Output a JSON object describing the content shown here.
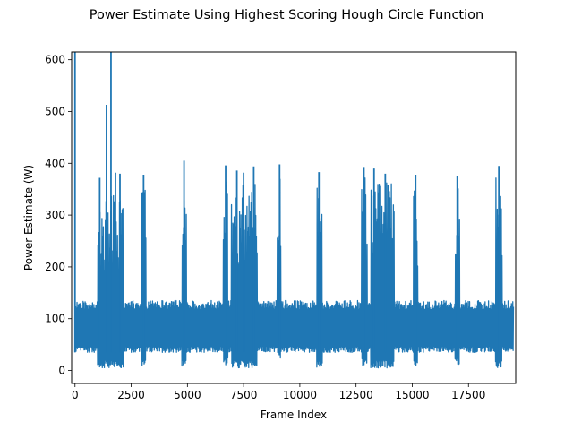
{
  "chart_data": {
    "type": "line",
    "title": "Power Estimate Using Highest Scoring Hough Circle Function",
    "xlabel": "Frame Index",
    "ylabel": "Power Estimate (W)",
    "xlim": [
      -150,
      19600
    ],
    "ylim": [
      -25,
      615
    ],
    "xticks": [
      0,
      2500,
      5000,
      7500,
      10000,
      12500,
      15000,
      17500
    ],
    "xtick_labels": [
      "0",
      "2500",
      "5000",
      "7500",
      "10000",
      "12500",
      "15000",
      "17500"
    ],
    "yticks": [
      0,
      100,
      200,
      300,
      400,
      500,
      600
    ],
    "ytick_labels": [
      "0",
      "100",
      "200",
      "300",
      "400",
      "500",
      "600"
    ],
    "grid": false,
    "legend": "none",
    "series": [
      {
        "color": "#1f77b4",
        "x_range": [
          0,
          19500
        ],
        "baseline_low": 35,
        "baseline_high": 135,
        "spikes": [
          {
            "x": 0,
            "y": 615
          },
          {
            "x": 1100,
            "y": 372
          },
          {
            "x": 1400,
            "y": 513
          },
          {
            "x": 1600,
            "y": 615
          },
          {
            "x": 1800,
            "y": 382
          },
          {
            "x": 2000,
            "y": 380
          },
          {
            "x": 3050,
            "y": 378
          },
          {
            "x": 4850,
            "y": 405
          },
          {
            "x": 6700,
            "y": 396
          },
          {
            "x": 7200,
            "y": 386
          },
          {
            "x": 7500,
            "y": 382
          },
          {
            "x": 7950,
            "y": 394
          },
          {
            "x": 9100,
            "y": 398
          },
          {
            "x": 10850,
            "y": 383
          },
          {
            "x": 12850,
            "y": 393
          },
          {
            "x": 13300,
            "y": 390
          },
          {
            "x": 13800,
            "y": 380
          },
          {
            "x": 15150,
            "y": 378
          },
          {
            "x": 17000,
            "y": 376
          },
          {
            "x": 18850,
            "y": 395
          }
        ],
        "active_regions": [
          {
            "x0": 1000,
            "x1": 2150,
            "y_high": 340,
            "y_low": 5
          },
          {
            "x0": 2950,
            "x1": 3150,
            "y_high": 360,
            "y_low": 8
          },
          {
            "x0": 4750,
            "x1": 4950,
            "y_high": 365,
            "y_low": 8
          },
          {
            "x0": 6600,
            "x1": 6800,
            "y_high": 370,
            "y_low": 10
          },
          {
            "x0": 6950,
            "x1": 8100,
            "y_high": 360,
            "y_low": 5
          },
          {
            "x0": 9000,
            "x1": 9150,
            "y_high": 375,
            "y_low": 20
          },
          {
            "x0": 10750,
            "x1": 11000,
            "y_high": 370,
            "y_low": 5
          },
          {
            "x0": 12750,
            "x1": 13000,
            "y_high": 380,
            "y_low": 8
          },
          {
            "x0": 13150,
            "x1": 14200,
            "y_high": 365,
            "y_low": 5
          },
          {
            "x0": 15050,
            "x1": 15250,
            "y_high": 360,
            "y_low": 8
          },
          {
            "x0": 16900,
            "x1": 17100,
            "y_high": 355,
            "y_low": 10
          },
          {
            "x0": 18700,
            "x1": 19000,
            "y_high": 380,
            "y_low": 5
          }
        ]
      }
    ]
  }
}
